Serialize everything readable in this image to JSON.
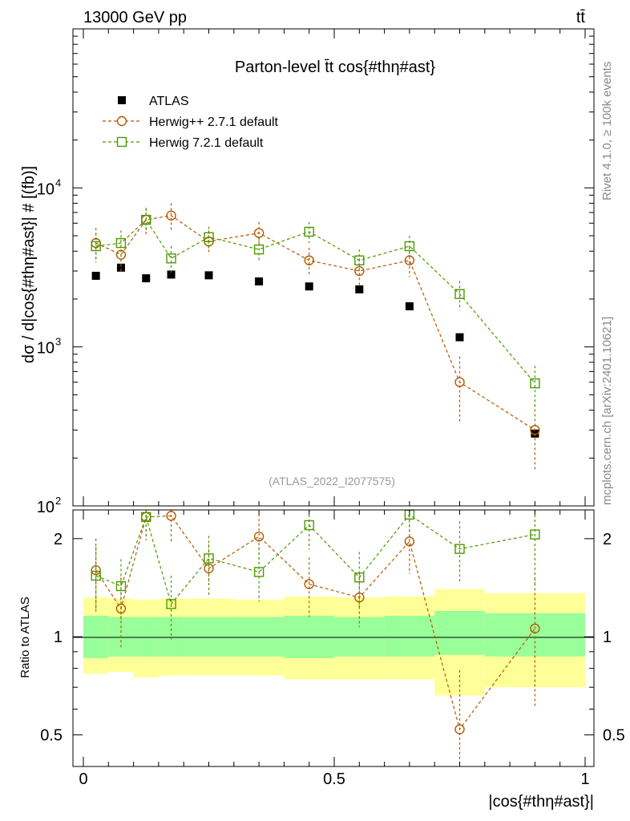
{
  "header": {
    "energy_label": "13000 GeV pp",
    "process_label": "tt̄"
  },
  "side": {
    "rivet_label": "Rivet 4.1.0, ≥ 100k events",
    "mcplots_label": "mcplots.cern.ch [arXiv:2401.10621]"
  },
  "chart_data": [
    {
      "type": "scatter",
      "title": "Parton-level t̄t cos{#thη#ast}",
      "analysis_label": "(ATLAS_2022_I2077575)",
      "ylabel": "dσ / d|cos{#thη#ast}| # [(fb)]",
      "xlabel": "|cos{#thη#ast}|",
      "yscale": "log",
      "xlim": [
        0,
        1
      ],
      "ylim": [
        100,
        100000
      ],
      "yticks": [
        {
          "value": 100,
          "label": "10",
          "exp": "2"
        },
        {
          "value": 1000,
          "label": "10",
          "exp": "3"
        },
        {
          "value": 10000,
          "label": "10",
          "exp": "4"
        }
      ],
      "legend": [
        {
          "name": "ATLAS",
          "color": "#000000",
          "marker": "square-filled"
        },
        {
          "name": "Herwig++ 2.7.1 default",
          "color": "#b35900",
          "marker": "circle-open"
        },
        {
          "name": "Herwig 7.2.1 default",
          "color": "#4c9900",
          "marker": "square-open"
        }
      ],
      "series": [
        {
          "name": "ATLAS",
          "x": [
            0.025,
            0.075,
            0.125,
            0.175,
            0.25,
            0.35,
            0.45,
            0.55,
            0.65,
            0.75,
            0.9
          ],
          "y": [
            2800,
            3150,
            2700,
            2850,
            2820,
            2580,
            2400,
            2300,
            1800,
            1150,
            285
          ]
        },
        {
          "name": "Herwig++ 2.7.1 default",
          "x": [
            0.025,
            0.075,
            0.125,
            0.175,
            0.25,
            0.35,
            0.45,
            0.55,
            0.65,
            0.75,
            0.9
          ],
          "y": [
            4500,
            3800,
            6300,
            6700,
            4600,
            5200,
            3500,
            3000,
            3500,
            600,
            300
          ],
          "err": [
            1100,
            900,
            1200,
            1300,
            800,
            900,
            700,
            600,
            750,
            270,
            135
          ]
        },
        {
          "name": "Herwig 7.2.1 default",
          "x": [
            0.025,
            0.075,
            0.125,
            0.175,
            0.25,
            0.35,
            0.45,
            0.55,
            0.65,
            0.75,
            0.9
          ],
          "y": [
            4300,
            4500,
            6300,
            3600,
            4900,
            4100,
            5300,
            3500,
            4300,
            2150,
            590
          ],
          "err": [
            900,
            900,
            1100,
            700,
            800,
            700,
            800,
            600,
            700,
            450,
            170
          ]
        }
      ]
    },
    {
      "type": "scatter",
      "ylabel": "Ratio to ATLAS",
      "xlabel": "|cos{#thη#ast}|",
      "yscale": "log",
      "xlim": [
        0,
        1
      ],
      "ylim": [
        0.4,
        2.45
      ],
      "yticks": [
        {
          "value": 0.5,
          "label": "0.5"
        },
        {
          "value": 1,
          "label": "1"
        },
        {
          "value": 2,
          "label": "2"
        }
      ],
      "xticks": [
        {
          "value": 0,
          "label": "0"
        },
        {
          "value": 0.5,
          "label": "0.5"
        },
        {
          "value": 1,
          "label": "1"
        }
      ],
      "bands": {
        "edges": [
          0,
          0.05,
          0.1,
          0.15,
          0.2,
          0.3,
          0.4,
          0.5,
          0.6,
          0.7,
          0.8,
          1.0
        ],
        "inner": {
          "color": "#99ff99",
          "lo": [
            0.86,
            0.87,
            0.87,
            0.87,
            0.87,
            0.87,
            0.86,
            0.87,
            0.87,
            0.88,
            0.87
          ],
          "hi": [
            1.16,
            1.15,
            1.15,
            1.15,
            1.15,
            1.15,
            1.16,
            1.15,
            1.16,
            1.2,
            1.18
          ]
        },
        "outer": {
          "color": "#ffff99",
          "lo": [
            0.77,
            0.78,
            0.75,
            0.76,
            0.76,
            0.76,
            0.74,
            0.74,
            0.74,
            0.66,
            0.7
          ],
          "hi": [
            1.32,
            1.31,
            1.3,
            1.31,
            1.31,
            1.3,
            1.33,
            1.32,
            1.33,
            1.4,
            1.36
          ]
        }
      },
      "series": [
        {
          "name": "Herwig++ 2.7.1 default",
          "x": [
            0.025,
            0.075,
            0.125,
            0.175,
            0.25,
            0.35,
            0.45,
            0.55,
            0.65,
            0.75,
            0.9
          ],
          "y": [
            1.6,
            1.22,
            2.33,
            2.35,
            1.62,
            2.03,
            1.45,
            1.32,
            1.96,
            0.52,
            1.06
          ],
          "err": [
            0.4,
            0.3,
            0.35,
            0.4,
            0.3,
            0.35,
            0.3,
            0.25,
            0.4,
            0.27,
            0.45
          ]
        },
        {
          "name": "Herwig 7.2.1 default",
          "x": [
            0.025,
            0.075,
            0.125,
            0.175,
            0.25,
            0.35,
            0.45,
            0.55,
            0.65,
            0.75,
            0.9
          ],
          "y": [
            1.54,
            1.43,
            2.33,
            1.26,
            1.74,
            1.58,
            2.2,
            1.52,
            2.37,
            1.86,
            2.06
          ],
          "err": [
            0.35,
            0.3,
            0.35,
            0.28,
            0.3,
            0.3,
            0.35,
            0.3,
            0.4,
            0.4,
            0.6
          ]
        }
      ]
    }
  ]
}
